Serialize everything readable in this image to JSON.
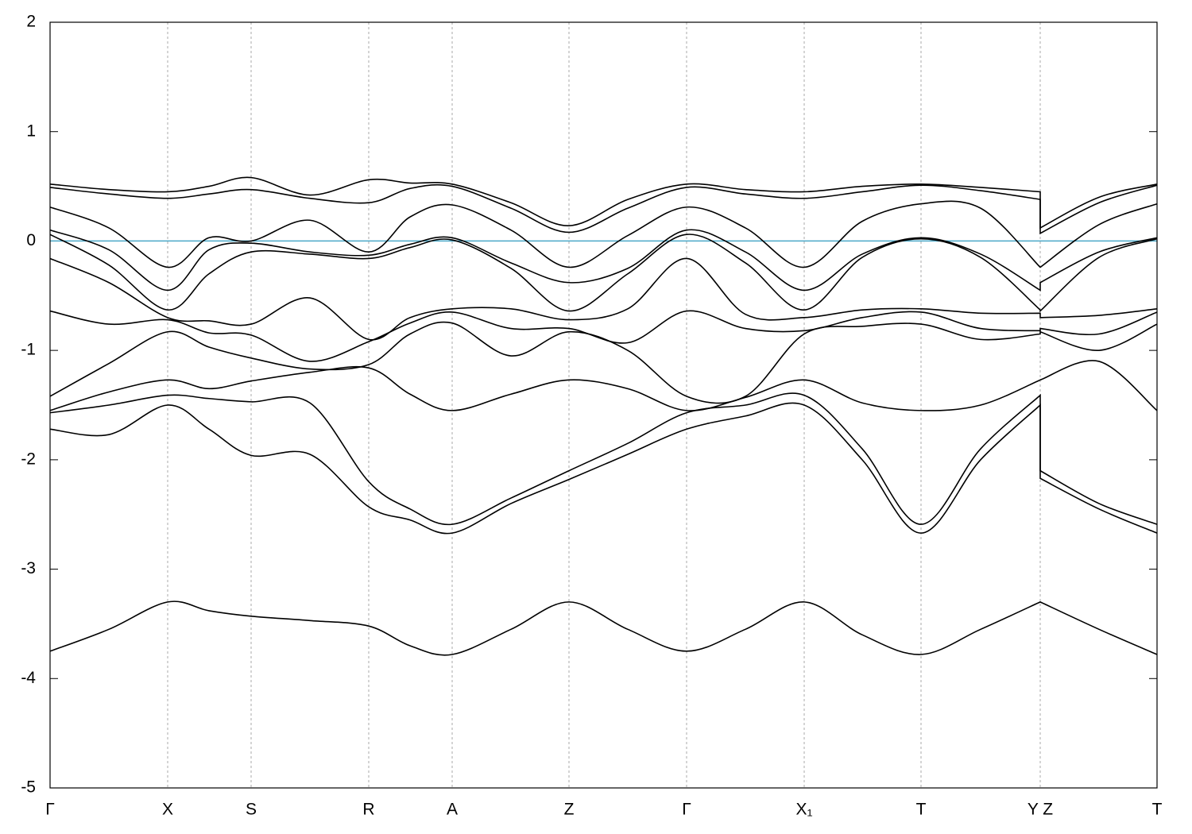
{
  "chart_data": {
    "type": "line",
    "x": [
      0,
      0.74,
      1.48,
      2.0,
      2.53,
      3.27,
      4.01,
      4.53,
      5.06,
      5.8,
      6.53,
      7.27,
      8.01,
      8.75,
      9.49,
      10.22,
      10.96,
      11.71,
      12.46,
      12.46,
      13.2,
      13.93
    ],
    "series": [
      {
        "color": "#000000",
        "values": [
          0.52,
          0.47,
          0.45,
          0.5,
          0.58,
          0.42,
          0.56,
          0.53,
          0.52,
          0.35,
          0.14,
          0.38,
          0.52,
          0.47,
          0.45,
          0.5,
          0.52,
          0.49,
          0.45,
          0.12,
          0.4,
          0.52
        ]
      },
      {
        "color": "#000000",
        "values": [
          0.49,
          0.43,
          0.39,
          0.43,
          0.47,
          0.39,
          0.35,
          0.48,
          0.5,
          0.3,
          0.08,
          0.3,
          0.49,
          0.43,
          0.39,
          0.45,
          0.51,
          0.46,
          0.38,
          0.07,
          0.35,
          0.51
        ]
      },
      {
        "color": "#000000",
        "values": [
          0.31,
          0.12,
          -0.24,
          0.03,
          0.0,
          0.19,
          -0.1,
          0.22,
          0.33,
          0.1,
          -0.24,
          0.05,
          0.31,
          0.12,
          -0.24,
          0.18,
          0.34,
          0.3,
          -0.24,
          -0.24,
          0.15,
          0.34
        ]
      },
      {
        "color": "#000000",
        "values": [
          0.1,
          -0.08,
          -0.45,
          -0.08,
          -0.02,
          -0.1,
          -0.13,
          -0.03,
          0.03,
          -0.2,
          -0.38,
          -0.25,
          0.1,
          -0.1,
          -0.45,
          -0.12,
          0.03,
          -0.12,
          -0.45,
          -0.38,
          -0.1,
          0.03
        ]
      },
      {
        "color": "#000000",
        "values": [
          0.06,
          -0.22,
          -0.63,
          -0.3,
          -0.1,
          -0.12,
          -0.16,
          -0.06,
          0.01,
          -0.25,
          -0.64,
          -0.3,
          0.06,
          -0.2,
          -0.63,
          -0.15,
          0.02,
          -0.15,
          -0.63,
          -0.64,
          -0.15,
          0.02
        ]
      },
      {
        "color": "#000000",
        "values": [
          -0.16,
          -0.38,
          -0.7,
          -0.73,
          -0.76,
          -0.52,
          -0.9,
          -0.7,
          -0.62,
          -0.62,
          -0.72,
          -0.62,
          -0.16,
          -0.67,
          -0.7,
          -0.63,
          -0.62,
          -0.66,
          -0.66,
          -0.7,
          -0.68,
          -0.62
        ]
      },
      {
        "color": "#000000",
        "values": [
          -0.64,
          -0.76,
          -0.72,
          -0.84,
          -0.86,
          -1.1,
          -0.92,
          -0.75,
          -0.65,
          -0.8,
          -0.8,
          -0.93,
          -0.64,
          -0.8,
          -0.82,
          -0.7,
          -0.65,
          -0.8,
          -0.82,
          -0.8,
          -0.85,
          -0.65
        ]
      },
      {
        "color": "#000000",
        "values": [
          -1.42,
          -1.12,
          -0.83,
          -0.97,
          -1.07,
          -1.17,
          -1.13,
          -0.85,
          -0.75,
          -1.05,
          -0.83,
          -1.0,
          -1.42,
          -1.42,
          -0.85,
          -0.78,
          -0.76,
          -0.9,
          -0.85,
          -0.83,
          -1.0,
          -0.76
        ]
      },
      {
        "color": "#000000",
        "values": [
          -1.55,
          -1.38,
          -1.27,
          -1.35,
          -1.28,
          -1.2,
          -1.16,
          -1.4,
          -1.55,
          -1.4,
          -1.27,
          -1.35,
          -1.55,
          -1.43,
          -1.27,
          -1.48,
          -1.55,
          -1.5,
          -1.27,
          -1.27,
          -1.1,
          -1.55
        ]
      },
      {
        "color": "#000000",
        "values": [
          -1.57,
          -1.5,
          -1.41,
          -1.44,
          -1.47,
          -1.48,
          -2.2,
          -2.45,
          -2.59,
          -2.35,
          -2.1,
          -1.85,
          -1.57,
          -1.5,
          -1.41,
          -1.9,
          -2.59,
          -1.9,
          -1.41,
          -2.1,
          -2.4,
          -2.59
        ]
      },
      {
        "color": "#000000",
        "values": [
          -1.72,
          -1.77,
          -1.5,
          -1.72,
          -1.96,
          -1.95,
          -2.43,
          -2.55,
          -2.67,
          -2.4,
          -2.18,
          -1.95,
          -1.72,
          -1.6,
          -1.5,
          -2.0,
          -2.67,
          -2.0,
          -1.5,
          -2.17,
          -2.45,
          -2.67
        ]
      },
      {
        "color": "#000000",
        "values": [
          -3.75,
          -3.55,
          -3.3,
          -3.38,
          -3.43,
          -3.47,
          -3.52,
          -3.7,
          -3.78,
          -3.55,
          -3.3,
          -3.55,
          -3.75,
          -3.55,
          -3.3,
          -3.6,
          -3.78,
          -3.55,
          -3.3,
          -3.3,
          -3.55,
          -3.78
        ]
      }
    ],
    "xlim": [
      0,
      13.93
    ],
    "xticks": [
      {
        "value": 0,
        "label": "Γ"
      },
      {
        "value": 1.48,
        "label": "X"
      },
      {
        "value": 2.53,
        "label": "S"
      },
      {
        "value": 4.01,
        "label": "R"
      },
      {
        "value": 5.06,
        "label": "A"
      },
      {
        "value": 6.53,
        "label": "Z"
      },
      {
        "value": 8.01,
        "label": "Γ"
      },
      {
        "value": 9.49,
        "label": "X₁"
      },
      {
        "value": 10.96,
        "label": "T"
      },
      {
        "value": 12.46,
        "label": "Y Z"
      },
      {
        "value": 13.93,
        "label": "T"
      }
    ],
    "ylim": [
      -5,
      2
    ],
    "yticks": [
      -5,
      -4,
      -3,
      -2,
      -1,
      0,
      1,
      2
    ],
    "grid": "x",
    "reference_line": {
      "value": 0,
      "color": "#4aa8c8"
    }
  }
}
